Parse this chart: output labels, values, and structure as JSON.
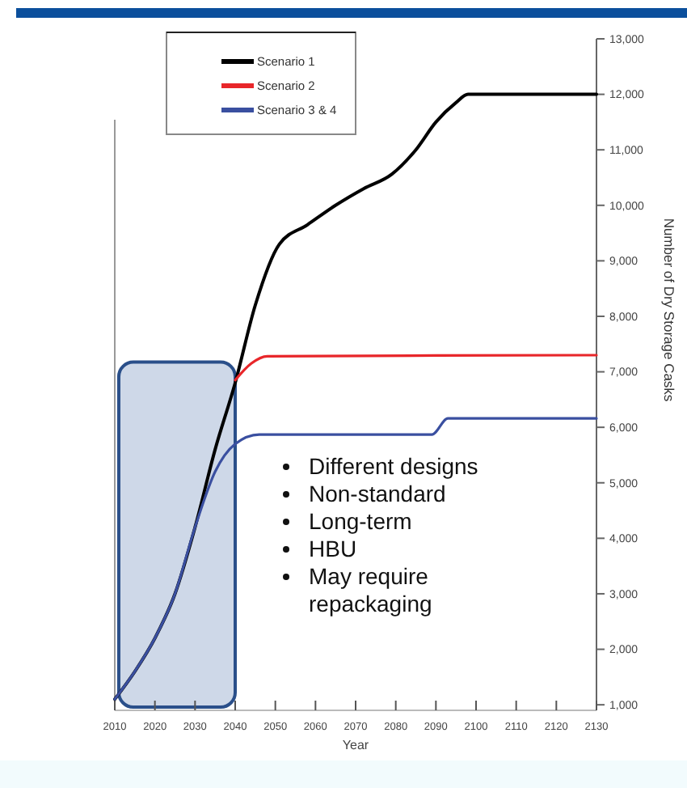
{
  "chart_data": {
    "type": "line",
    "xlabel": "Year",
    "ylabel": "Number of Dry Storage Casks",
    "xlim": [
      2010,
      2130
    ],
    "xticks": [
      2010,
      2020,
      2030,
      2040,
      2050,
      2060,
      2070,
      2080,
      2090,
      2100,
      2110,
      2120,
      2130
    ],
    "ylim": [
      900,
      13000
    ],
    "yticks": [
      {
        "value": 1000,
        "label": "1,000"
      },
      {
        "value": 2000,
        "label": "2,000"
      },
      {
        "value": 3000,
        "label": "3,000"
      },
      {
        "value": 4000,
        "label": "4,000"
      },
      {
        "value": 5000,
        "label": "5,000"
      },
      {
        "value": 6000,
        "label": "6,000"
      },
      {
        "value": 7000,
        "label": "7,000"
      },
      {
        "value": 8000,
        "label": "8,000"
      },
      {
        "value": 9000,
        "label": "9,000"
      },
      {
        "value": 10000,
        "label": "10,000"
      },
      {
        "value": 11000,
        "label": "11,000"
      },
      {
        "value": 12000,
        "label": "12,000"
      },
      {
        "value": 13000,
        "label": "13,000"
      }
    ],
    "legend": "top left",
    "grid": false,
    "series": [
      {
        "name": "Scenario 1",
        "color": "#000000",
        "x": [
          2010,
          2015,
          2020,
          2025,
          2030,
          2035,
          2040,
          2045,
          2051,
          2058,
          2065,
          2072,
          2079,
          2085,
          2090,
          2095,
          2098,
          2100,
          2130
        ],
        "values": [
          1100,
          1600,
          2200,
          3000,
          4200,
          5600,
          6800,
          8200,
          9300,
          9650,
          10000,
          10300,
          10560,
          11000,
          11500,
          11850,
          12000,
          12000,
          12000
        ]
      },
      {
        "name": "Scenario 2",
        "color": "#e8262a",
        "x": [
          2040,
          2044,
          2048,
          2130
        ],
        "values": [
          6850,
          7150,
          7280,
          7300
        ]
      },
      {
        "name": "Scenario 3 & 4",
        "color": "#3a4fa0",
        "x": [
          2010,
          2015,
          2020,
          2025,
          2030,
          2035,
          2040,
          2046,
          2089,
          2093,
          2130
        ],
        "values": [
          1100,
          1600,
          2200,
          3000,
          4200,
          5200,
          5700,
          5870,
          5870,
          6160,
          6160
        ]
      }
    ],
    "bands": [
      {
        "axis": "x",
        "from": 2011,
        "to": 2040,
        "color": "#c9d4e6"
      }
    ],
    "annotations": [
      "Different designs",
      "Non-standard",
      "Long-term",
      "HBU",
      "May require repackaging"
    ]
  }
}
